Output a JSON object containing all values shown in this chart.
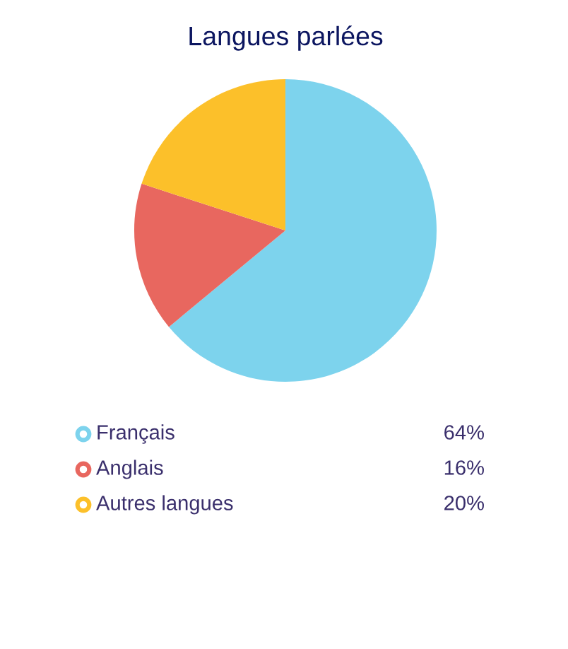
{
  "chart_data": {
    "type": "pie",
    "title": "Langues parlées",
    "categories": [
      "Français",
      "Anglais",
      "Autres langues"
    ],
    "values": [
      64,
      16,
      20
    ],
    "value_labels": [
      "64%",
      "16%",
      "20%"
    ],
    "colors": [
      "#7dd3ed",
      "#e8675f",
      "#fcc02a"
    ],
    "legend": "bottom"
  }
}
